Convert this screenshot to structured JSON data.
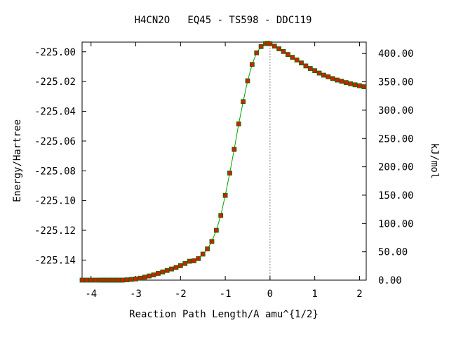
{
  "chart_data": {
    "type": "line",
    "title": "H4CN2O   EQ45 - TS598 - DDC119",
    "xlabel": "Reaction Path Length/A amu^{1/2}",
    "ylabel": "Energy/Hartree",
    "y2label": "kJ/mol",
    "xlim": [
      -4.2,
      2.15
    ],
    "ylim": [
      -225.1535,
      -224.9935
    ],
    "y2lim": [
      0,
      420.1
    ],
    "x_ticks": [
      -4,
      -3,
      -2,
      -1,
      0,
      1,
      2
    ],
    "x_tick_labels": [
      "-4",
      "-3",
      "-2",
      "-1",
      "0",
      "1",
      "2"
    ],
    "y_ticks": [
      -225.0,
      -225.02,
      -225.04,
      -225.06,
      -225.08,
      -225.1,
      -225.12,
      -225.14
    ],
    "y_tick_labels": [
      "-225.00",
      "-225.02",
      "-225.04",
      "-225.06",
      "-225.08",
      "-225.10",
      "-225.12",
      "-225.14"
    ],
    "y2_ticks": [
      0,
      50,
      100,
      150,
      200,
      250,
      300,
      350,
      400
    ],
    "y2_tick_labels": [
      "0.00",
      "50.00",
      "100.00",
      "150.00",
      "200.00",
      "250.00",
      "300.00",
      "350.00",
      "400.00"
    ],
    "ts_marker_x": 0,
    "grid": false,
    "colors": {
      "line": "#00a000",
      "marker": "#cc2200",
      "marker_edge": "#007000",
      "ts_line": "#888888"
    },
    "series": [
      {
        "x": [
          -4.2,
          -4.1,
          -4.0,
          -3.9,
          -3.8,
          -3.75,
          -3.7,
          -3.65,
          -3.6,
          -3.55,
          -3.5,
          -3.45,
          -3.4,
          -3.35,
          -3.3,
          -3.2,
          -3.1,
          -3.0,
          -2.9,
          -2.8,
          -2.7,
          -2.6,
          -2.5,
          -2.4,
          -2.3,
          -2.2,
          -2.1,
          -2.0,
          -1.9,
          -1.8,
          -1.7,
          -1.6,
          -1.5,
          -1.4,
          -1.3,
          -1.2,
          -1.1,
          -1.0,
          -0.9,
          -0.8,
          -0.7,
          -0.6,
          -0.5,
          -0.4,
          -0.3,
          -0.2,
          -0.1,
          -0.05,
          0.0,
          0.1,
          0.2,
          0.3,
          0.4,
          0.5,
          0.6,
          0.7,
          0.8,
          0.9,
          1.0,
          1.1,
          1.2,
          1.3,
          1.4,
          1.5,
          1.6,
          1.7,
          1.8,
          1.9,
          2.0,
          2.1
        ],
        "y": [
          -225.1535,
          -225.1535,
          -225.1535,
          -225.1535,
          -225.1535,
          -225.1535,
          -225.1535,
          -225.1535,
          -225.1535,
          -225.1535,
          -225.1535,
          -225.1535,
          -225.1535,
          -225.1535,
          -225.1535,
          -225.1533,
          -225.153,
          -225.1527,
          -225.1522,
          -225.1515,
          -225.1507,
          -225.15,
          -225.149,
          -225.148,
          -225.147,
          -225.146,
          -225.145,
          -225.1438,
          -225.1423,
          -225.1408,
          -225.1405,
          -225.139,
          -225.136,
          -225.1325,
          -225.1275,
          -225.12,
          -225.11,
          -225.0965,
          -225.0815,
          -225.0655,
          -225.0485,
          -225.0335,
          -225.0195,
          -225.0085,
          -225.0007,
          -224.9965,
          -224.9945,
          -224.9943,
          -224.9945,
          -224.9962,
          -224.998,
          -224.9998,
          -225.0018,
          -225.0037,
          -225.0055,
          -225.0075,
          -225.0095,
          -225.0112,
          -225.0127,
          -225.0143,
          -225.0157,
          -225.0168,
          -225.018,
          -225.019,
          -225.0198,
          -225.0207,
          -225.0215,
          -225.0222,
          -225.0228,
          -225.0235
        ]
      }
    ]
  }
}
